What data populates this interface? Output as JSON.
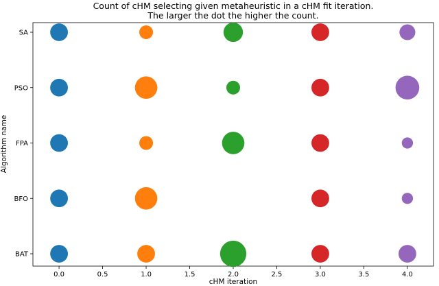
{
  "chart_data": {
    "type": "scatter",
    "title": [
      "Count of cHM selecting given metaheuristic in a cHM fit iteration.",
      "The larger the dot the higher the count."
    ],
    "xlabel": "cHM iteration",
    "ylabel": "Algorithm name",
    "xlim": [
      -0.3,
      4.3
    ],
    "xticks": [
      "0.0",
      "0.5",
      "1.0",
      "1.5",
      "2.0",
      "2.5",
      "3.0",
      "3.5",
      "4.0"
    ],
    "categories": [
      "BAT",
      "BFO",
      "FPA",
      "PSO",
      "SA"
    ],
    "grid": false,
    "series": [
      {
        "color": "#1f77b4",
        "x": [
          0,
          0,
          0,
          0,
          0
        ],
        "y": [
          "BAT",
          "BFO",
          "FPA",
          "PSO",
          "SA"
        ],
        "size": [
          5,
          5,
          5,
          5,
          5
        ]
      },
      {
        "color": "#ff7f0e",
        "x": [
          1,
          1,
          1,
          1,
          1
        ],
        "y": [
          "BAT",
          "BFO",
          "FPA",
          "PSO",
          "SA"
        ],
        "size": [
          5,
          8,
          3,
          8,
          3
        ]
      },
      {
        "color": "#2ca02c",
        "x": [
          2,
          2,
          2,
          2,
          2
        ],
        "y": [
          "BAT",
          "BFO",
          "FPA",
          "PSO",
          "SA"
        ],
        "size": [
          11,
          0,
          8,
          3,
          6
        ]
      },
      {
        "color": "#d62728",
        "x": [
          3,
          3,
          3,
          3,
          3
        ],
        "y": [
          "BAT",
          "BFO",
          "FPA",
          "PSO",
          "SA"
        ],
        "size": [
          5,
          5,
          5,
          5,
          5
        ]
      },
      {
        "color": "#9467bd",
        "x": [
          4,
          4,
          4,
          4,
          4
        ],
        "y": [
          "BAT",
          "BFO",
          "FPA",
          "PSO",
          "SA"
        ],
        "size": [
          5,
          2,
          2,
          9,
          4
        ]
      }
    ]
  }
}
